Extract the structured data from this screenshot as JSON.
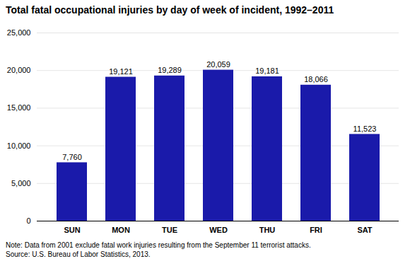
{
  "chart_data": {
    "type": "bar",
    "title": "Total fatal occupational injuries by day of week of incident, 1992–2011",
    "categories": [
      "SUN",
      "MON",
      "TUE",
      "WED",
      "THU",
      "FRI",
      "SAT"
    ],
    "values": [
      7760,
      19121,
      19289,
      20059,
      19181,
      18066,
      11523
    ],
    "value_labels": [
      "7,760",
      "19,121",
      "19,289",
      "20,059",
      "19,181",
      "18,066",
      "11,523"
    ],
    "data_labels": true,
    "color": "#1a1aaa",
    "ylim": [
      0,
      25000
    ],
    "yticks": [
      0,
      {
        "value": 5000,
        "label": "5,000"
      },
      {
        "value": 10000,
        "label": "10,000"
      },
      {
        "value": 15000,
        "label": "15,000"
      },
      {
        "value": 20000,
        "label": "20,000"
      },
      {
        "value": 25000,
        "label": "25,000"
      }
    ],
    "grid": true,
    "annotations": [
      "Note: Data from 2001 exclude fatal work injuries resulting from the September 11 terrorist attacks.",
      "Source: U.S. Bureau of Labor Statistics, 2013."
    ]
  }
}
